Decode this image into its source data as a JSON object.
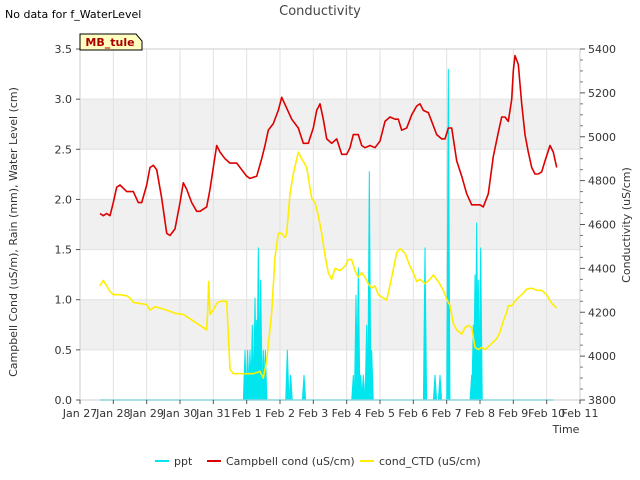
{
  "chart_data": {
    "type": "line",
    "title": "Conductivity",
    "note": "No data for f_WaterLevel",
    "badge": "MB_tule",
    "xlabel": "Time",
    "ylabel_left": "Campbell Cond (uS/m), Rain (mm), Water Level (cm)",
    "ylabel_right": "Conductivity (uS/cm)",
    "x_range_days": [
      0,
      15
    ],
    "x_ticks": [
      {
        "day": 0,
        "label": "Jan 27"
      },
      {
        "day": 1,
        "label": "Jan 28"
      },
      {
        "day": 2,
        "label": "Jan 29"
      },
      {
        "day": 3,
        "label": "Jan 30"
      },
      {
        "day": 4,
        "label": "Jan 31"
      },
      {
        "day": 5,
        "label": "Feb 1"
      },
      {
        "day": 6,
        "label": "Feb 2"
      },
      {
        "day": 7,
        "label": "Feb 3"
      },
      {
        "day": 8,
        "label": "Feb 4"
      },
      {
        "day": 9,
        "label": "Feb 5"
      },
      {
        "day": 10,
        "label": "Feb 6"
      },
      {
        "day": 11,
        "label": "Feb 7"
      },
      {
        "day": 12,
        "label": "Feb 8"
      },
      {
        "day": 13,
        "label": "Feb 9"
      },
      {
        "day": 14,
        "label": "Feb 10"
      },
      {
        "day": 15,
        "label": "Feb 11"
      }
    ],
    "y_left_range": [
      0,
      3.5
    ],
    "y_left_ticks": [
      "0.0",
      "0.5",
      "1.0",
      "1.5",
      "2.0",
      "2.5",
      "3.0",
      "3.5"
    ],
    "y_right_range": [
      3800,
      5400
    ],
    "y_right_ticks": [
      "3800",
      "4000",
      "4200",
      "4400",
      "4600",
      "4800",
      "5000",
      "5200",
      "5400"
    ],
    "legend": [
      {
        "name": "ppt",
        "color": "#00e5ee"
      },
      {
        "name": "Campbell cond (uS/cm)",
        "color": "#dd0000"
      },
      {
        "name": "cond_CTD (uS/cm)",
        "color": "#ffee00"
      }
    ],
    "series": [
      {
        "name": "ppt",
        "axis": "left",
        "color": "#00e5ee",
        "kind": "spikes",
        "baseline": [
          0.6,
          14.2
        ],
        "spikes": [
          [
            4.95,
            0.5
          ],
          [
            5.03,
            0.5
          ],
          [
            5.1,
            0.5
          ],
          [
            5.17,
            0.75
          ],
          [
            5.25,
            1.02
          ],
          [
            5.3,
            0.8
          ],
          [
            5.35,
            1.52
          ],
          [
            5.42,
            1.2
          ],
          [
            5.5,
            0.5
          ],
          [
            5.56,
            0.5
          ],
          [
            6.22,
            0.5
          ],
          [
            6.32,
            0.25
          ],
          [
            6.72,
            0.25
          ],
          [
            8.2,
            0.25
          ],
          [
            8.28,
            1.05
          ],
          [
            8.35,
            1.32
          ],
          [
            8.42,
            0.25
          ],
          [
            8.5,
            0.25
          ],
          [
            8.6,
            0.75
          ],
          [
            8.68,
            2.28
          ],
          [
            8.75,
            0.5
          ],
          [
            10.35,
            1.52
          ],
          [
            10.65,
            0.25
          ],
          [
            10.8,
            0.25
          ],
          [
            11.05,
            3.3
          ],
          [
            11.75,
            0.25
          ],
          [
            11.8,
            0.75
          ],
          [
            11.85,
            1.25
          ],
          [
            11.9,
            1.77
          ],
          [
            11.95,
            1.2
          ],
          [
            12.02,
            1.52
          ]
        ]
      },
      {
        "name": "Campbell cond (uS/cm)",
        "axis": "right",
        "color": "#dd0000",
        "kind": "line",
        "points": [
          [
            0.6,
            4650
          ],
          [
            0.7,
            4640
          ],
          [
            0.8,
            4650
          ],
          [
            0.9,
            4640
          ],
          [
            1.0,
            4700
          ],
          [
            1.1,
            4770
          ],
          [
            1.2,
            4780
          ],
          [
            1.4,
            4750
          ],
          [
            1.6,
            4750
          ],
          [
            1.75,
            4700
          ],
          [
            1.85,
            4700
          ],
          [
            2.0,
            4780
          ],
          [
            2.1,
            4860
          ],
          [
            2.2,
            4870
          ],
          [
            2.3,
            4850
          ],
          [
            2.45,
            4720
          ],
          [
            2.6,
            4560
          ],
          [
            2.7,
            4550
          ],
          [
            2.85,
            4580
          ],
          [
            3.0,
            4700
          ],
          [
            3.1,
            4790
          ],
          [
            3.2,
            4760
          ],
          [
            3.35,
            4700
          ],
          [
            3.5,
            4660
          ],
          [
            3.6,
            4660
          ],
          [
            3.8,
            4680
          ],
          [
            3.9,
            4760
          ],
          [
            4.0,
            4860
          ],
          [
            4.1,
            4960
          ],
          [
            4.2,
            4930
          ],
          [
            4.35,
            4900
          ],
          [
            4.5,
            4880
          ],
          [
            4.7,
            4880
          ],
          [
            4.85,
            4850
          ],
          [
            5.0,
            4820
          ],
          [
            5.1,
            4810
          ],
          [
            5.3,
            4820
          ],
          [
            5.45,
            4900
          ],
          [
            5.55,
            4960
          ],
          [
            5.65,
            5030
          ],
          [
            5.8,
            5060
          ],
          [
            5.95,
            5120
          ],
          [
            6.05,
            5180
          ],
          [
            6.2,
            5130
          ],
          [
            6.35,
            5080
          ],
          [
            6.55,
            5040
          ],
          [
            6.7,
            4970
          ],
          [
            6.85,
            4970
          ],
          [
            7.0,
            5040
          ],
          [
            7.1,
            5120
          ],
          [
            7.2,
            5150
          ],
          [
            7.3,
            5080
          ],
          [
            7.4,
            4990
          ],
          [
            7.55,
            4970
          ],
          [
            7.7,
            4990
          ],
          [
            7.85,
            4920
          ],
          [
            8.0,
            4920
          ],
          [
            8.1,
            4950
          ],
          [
            8.2,
            5010
          ],
          [
            8.35,
            5010
          ],
          [
            8.45,
            4960
          ],
          [
            8.55,
            4950
          ],
          [
            8.7,
            4960
          ],
          [
            8.85,
            4950
          ],
          [
            9.0,
            4980
          ],
          [
            9.15,
            5070
          ],
          [
            9.3,
            5090
          ],
          [
            9.45,
            5080
          ],
          [
            9.55,
            5080
          ],
          [
            9.65,
            5030
          ],
          [
            9.8,
            5040
          ],
          [
            9.95,
            5100
          ],
          [
            10.1,
            5140
          ],
          [
            10.2,
            5150
          ],
          [
            10.3,
            5120
          ],
          [
            10.45,
            5110
          ],
          [
            10.55,
            5070
          ],
          [
            10.7,
            5010
          ],
          [
            10.85,
            4990
          ],
          [
            10.95,
            4990
          ],
          [
            11.05,
            5040
          ],
          [
            11.15,
            5040
          ],
          [
            11.3,
            4890
          ],
          [
            11.45,
            4820
          ],
          [
            11.6,
            4740
          ],
          [
            11.75,
            4690
          ],
          [
            11.85,
            4690
          ],
          [
            12.0,
            4690
          ],
          [
            12.1,
            4680
          ],
          [
            12.25,
            4740
          ],
          [
            12.4,
            4910
          ],
          [
            12.55,
            5020
          ],
          [
            12.65,
            5090
          ],
          [
            12.75,
            5090
          ],
          [
            12.85,
            5070
          ],
          [
            12.95,
            5170
          ],
          [
            13.0,
            5300
          ],
          [
            13.05,
            5370
          ],
          [
            13.15,
            5330
          ],
          [
            13.25,
            5150
          ],
          [
            13.35,
            5010
          ],
          [
            13.45,
            4930
          ],
          [
            13.55,
            4860
          ],
          [
            13.65,
            4830
          ],
          [
            13.75,
            4830
          ],
          [
            13.85,
            4840
          ],
          [
            13.95,
            4890
          ],
          [
            14.1,
            4960
          ],
          [
            14.2,
            4930
          ],
          [
            14.3,
            4860
          ]
        ]
      },
      {
        "name": "cond_CTD (uS/cm)",
        "axis": "right",
        "color": "#ffee00",
        "kind": "line",
        "points": [
          [
            0.6,
            4320
          ],
          [
            0.7,
            4345
          ],
          [
            0.8,
            4320
          ],
          [
            0.9,
            4295
          ],
          [
            1.0,
            4280
          ],
          [
            1.2,
            4280
          ],
          [
            1.4,
            4275
          ],
          [
            1.5,
            4265
          ],
          [
            1.6,
            4245
          ],
          [
            1.8,
            4240
          ],
          [
            2.0,
            4235
          ],
          [
            2.1,
            4210
          ],
          [
            2.25,
            4225
          ],
          [
            2.5,
            4215
          ],
          [
            2.7,
            4205
          ],
          [
            2.85,
            4195
          ],
          [
            3.1,
            4190
          ],
          [
            3.3,
            4170
          ],
          [
            3.5,
            4150
          ],
          [
            3.7,
            4130
          ],
          [
            3.8,
            4120
          ],
          [
            3.83,
            4210
          ],
          [
            3.86,
            4340
          ],
          [
            3.9,
            4190
          ],
          [
            4.0,
            4210
          ],
          [
            4.1,
            4240
          ],
          [
            4.2,
            4250
          ],
          [
            4.4,
            4250
          ],
          [
            4.5,
            3940
          ],
          [
            4.55,
            3930
          ],
          [
            4.6,
            3920
          ],
          [
            4.8,
            3920
          ],
          [
            5.0,
            3920
          ],
          [
            5.2,
            3920
          ],
          [
            5.4,
            3930
          ],
          [
            5.5,
            3900
          ],
          [
            5.6,
            3980
          ],
          [
            5.75,
            4200
          ],
          [
            5.85,
            4450
          ],
          [
            5.95,
            4560
          ],
          [
            6.05,
            4560
          ],
          [
            6.15,
            4540
          ],
          [
            6.2,
            4560
          ],
          [
            6.3,
            4740
          ],
          [
            6.4,
            4830
          ],
          [
            6.55,
            4930
          ],
          [
            6.65,
            4900
          ],
          [
            6.8,
            4860
          ],
          [
            6.95,
            4720
          ],
          [
            7.05,
            4700
          ],
          [
            7.15,
            4640
          ],
          [
            7.25,
            4560
          ],
          [
            7.35,
            4460
          ],
          [
            7.45,
            4380
          ],
          [
            7.55,
            4350
          ],
          [
            7.65,
            4400
          ],
          [
            7.8,
            4390
          ],
          [
            7.95,
            4410
          ],
          [
            8.05,
            4440
          ],
          [
            8.15,
            4440
          ],
          [
            8.25,
            4390
          ],
          [
            8.35,
            4360
          ],
          [
            8.45,
            4380
          ],
          [
            8.55,
            4360
          ],
          [
            8.65,
            4330
          ],
          [
            8.75,
            4310
          ],
          [
            8.85,
            4320
          ],
          [
            8.95,
            4280
          ],
          [
            9.05,
            4270
          ],
          [
            9.2,
            4255
          ],
          [
            9.35,
            4360
          ],
          [
            9.5,
            4470
          ],
          [
            9.6,
            4490
          ],
          [
            9.75,
            4470
          ],
          [
            9.9,
            4410
          ],
          [
            10.0,
            4380
          ],
          [
            10.1,
            4340
          ],
          [
            10.2,
            4350
          ],
          [
            10.35,
            4330
          ],
          [
            10.5,
            4350
          ],
          [
            10.6,
            4370
          ],
          [
            10.75,
            4340
          ],
          [
            10.9,
            4300
          ],
          [
            11.0,
            4260
          ],
          [
            11.1,
            4230
          ],
          [
            11.2,
            4150
          ],
          [
            11.3,
            4120
          ],
          [
            11.45,
            4100
          ],
          [
            11.55,
            4130
          ],
          [
            11.65,
            4140
          ],
          [
            11.75,
            4130
          ],
          [
            11.85,
            4040
          ],
          [
            11.95,
            4030
          ],
          [
            12.05,
            4040
          ],
          [
            12.15,
            4030
          ],
          [
            12.3,
            4050
          ],
          [
            12.5,
            4080
          ],
          [
            12.6,
            4110
          ],
          [
            12.7,
            4160
          ],
          [
            12.8,
            4200
          ],
          [
            12.85,
            4230
          ],
          [
            12.95,
            4230
          ],
          [
            13.1,
            4260
          ],
          [
            13.25,
            4280
          ],
          [
            13.4,
            4305
          ],
          [
            13.55,
            4310
          ],
          [
            13.7,
            4300
          ],
          [
            13.85,
            4300
          ],
          [
            14.0,
            4280
          ],
          [
            14.15,
            4240
          ],
          [
            14.3,
            4220
          ]
        ]
      }
    ]
  }
}
